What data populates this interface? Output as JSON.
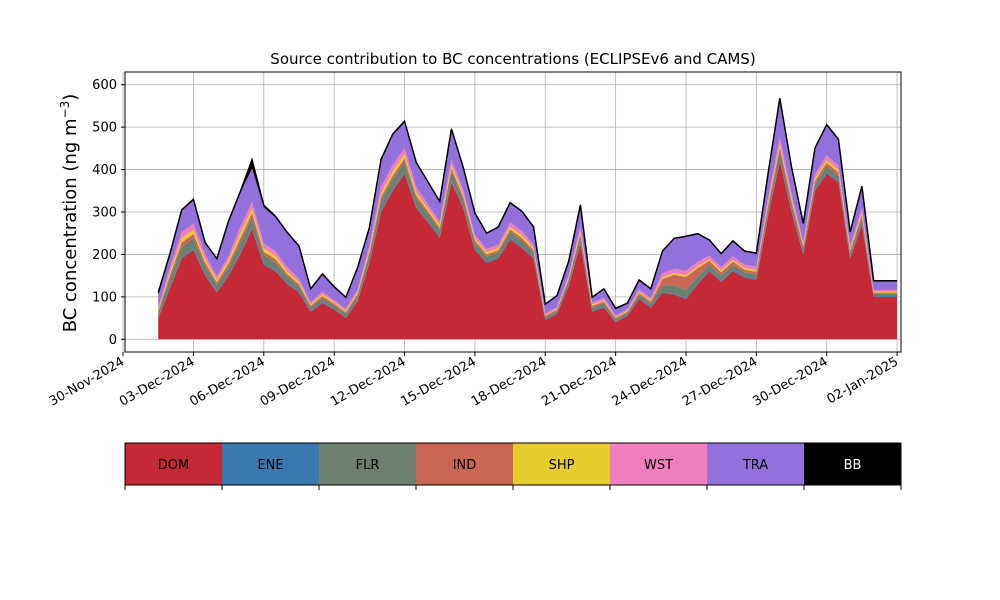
{
  "chart_data": {
    "type": "area",
    "title": "Source contribution to BC concentrations (ECLIPSEv6 and CAMS)",
    "ylabel": "BC concentration (ng m⁻³)",
    "ylabel_main": "BC concentration (ng m",
    "ylabel_exp": "−3",
    "ylabel_close": ")",
    "xlabel": "",
    "grid": true,
    "stacked": true,
    "ylim": [
      -30,
      630
    ],
    "xlim": [
      "2024-11-30T02:00",
      "2025-01-02T04:00"
    ],
    "yticks": [
      0,
      100,
      200,
      300,
      400,
      500,
      600
    ],
    "xticks": [
      "2024-11-30",
      "2024-12-03",
      "2024-12-06",
      "2024-12-09",
      "2024-12-12",
      "2024-12-15",
      "2024-12-18",
      "2024-12-21",
      "2024-12-24",
      "2024-12-27",
      "2024-12-30",
      "2025-01-02"
    ],
    "xtick_labels": [
      "30-Nov-2024",
      "03-Dec-2024",
      "06-Dec-2024",
      "09-Dec-2024",
      "12-Dec-2024",
      "15-Dec-2024",
      "18-Dec-2024",
      "21-Dec-2024",
      "24-Dec-2024",
      "27-Dec-2024",
      "30-Dec-2024",
      "02-Jan-2025"
    ],
    "x": [
      "2024-12-01T12:00",
      "2024-12-02T00:00",
      "2024-12-02T12:00",
      "2024-12-03T00:00",
      "2024-12-03T12:00",
      "2024-12-04T00:00",
      "2024-12-04T12:00",
      "2024-12-05T00:00",
      "2024-12-05T12:00",
      "2024-12-06T00:00",
      "2024-12-06T12:00",
      "2024-12-07T00:00",
      "2024-12-07T12:00",
      "2024-12-08T00:00",
      "2024-12-08T12:00",
      "2024-12-09T00:00",
      "2024-12-09T12:00",
      "2024-12-10T00:00",
      "2024-12-10T12:00",
      "2024-12-11T00:00",
      "2024-12-11T12:00",
      "2024-12-12T00:00",
      "2024-12-12T12:00",
      "2024-12-13T00:00",
      "2024-12-13T12:00",
      "2024-12-14T00:00",
      "2024-12-14T12:00",
      "2024-12-15T00:00",
      "2024-12-15T12:00",
      "2024-12-16T00:00",
      "2024-12-16T12:00",
      "2024-12-17T00:00",
      "2024-12-17T12:00",
      "2024-12-18T00:00",
      "2024-12-18T12:00",
      "2024-12-19T00:00",
      "2024-12-19T12:00",
      "2024-12-20T00:00",
      "2024-12-20T12:00",
      "2024-12-21T00:00",
      "2024-12-21T12:00",
      "2024-12-22T00:00",
      "2024-12-22T12:00",
      "2024-12-23T00:00",
      "2024-12-23T12:00",
      "2024-12-24T00:00",
      "2024-12-24T12:00",
      "2024-12-25T00:00",
      "2024-12-25T12:00",
      "2024-12-26T00:00",
      "2024-12-26T12:00",
      "2024-12-27T00:00",
      "2024-12-27T12:00",
      "2024-12-28T00:00",
      "2024-12-28T12:00",
      "2024-12-29T00:00",
      "2024-12-29T12:00",
      "2024-12-30T00:00",
      "2024-12-30T12:00",
      "2024-12-31T00:00",
      "2024-12-31T12:00",
      "2025-01-01T00:00",
      "2025-01-01T12:00",
      "2025-01-02T00:00"
    ],
    "series": [
      {
        "name": "DOM",
        "color": "#c42935",
        "values": [
          50,
          120,
          190,
          210,
          150,
          110,
          150,
          200,
          260,
          175,
          160,
          130,
          110,
          65,
          85,
          70,
          50,
          90,
          180,
          300,
          350,
          390,
          310,
          275,
          240,
          370,
          310,
          210,
          180,
          190,
          235,
          215,
          190,
          45,
          60,
          125,
          225,
          65,
          75,
          40,
          55,
          95,
          75,
          110,
          105,
          95,
          130,
          160,
          135,
          160,
          145,
          140,
          290,
          420,
          300,
          200,
          350,
          390,
          370,
          190,
          270,
          100,
          100,
          100
        ]
      },
      {
        "name": "ENE",
        "color": "#3a78b0",
        "values": [
          2,
          3,
          3,
          3,
          3,
          3,
          3,
          3,
          3,
          3,
          3,
          3,
          3,
          2,
          2,
          2,
          2,
          2,
          3,
          3,
          3,
          3,
          3,
          3,
          3,
          3,
          3,
          3,
          3,
          3,
          3,
          3,
          3,
          2,
          2,
          3,
          3,
          2,
          2,
          2,
          2,
          2,
          2,
          2,
          2,
          2,
          3,
          3,
          3,
          3,
          3,
          3,
          3,
          3,
          3,
          3,
          3,
          3,
          3,
          3,
          3,
          2,
          2,
          2
        ]
      },
      {
        "name": "FLR",
        "color": "#6d7f70",
        "values": [
          10,
          20,
          25,
          25,
          20,
          15,
          18,
          25,
          25,
          20,
          18,
          15,
          12,
          8,
          10,
          8,
          8,
          10,
          15,
          25,
          25,
          25,
          20,
          18,
          15,
          22,
          18,
          15,
          12,
          12,
          15,
          15,
          12,
          5,
          5,
          10,
          15,
          8,
          8,
          5,
          5,
          8,
          8,
          15,
          20,
          20,
          15,
          12,
          12,
          12,
          10,
          10,
          15,
          20,
          15,
          10,
          12,
          15,
          12,
          10,
          12,
          5,
          5,
          5
        ]
      },
      {
        "name": "IND",
        "color": "#c96655",
        "values": [
          5,
          8,
          10,
          10,
          8,
          6,
          8,
          10,
          10,
          8,
          8,
          6,
          5,
          4,
          5,
          4,
          4,
          5,
          6,
          8,
          8,
          8,
          6,
          6,
          5,
          8,
          6,
          5,
          5,
          5,
          6,
          6,
          5,
          3,
          3,
          4,
          6,
          4,
          4,
          3,
          3,
          4,
          4,
          15,
          25,
          30,
          20,
          10,
          8,
          8,
          6,
          6,
          8,
          10,
          8,
          6,
          8,
          8,
          8,
          6,
          8,
          3,
          3,
          3
        ]
      },
      {
        "name": "SHP",
        "color": "#e6cd2b",
        "values": [
          3,
          8,
          10,
          10,
          8,
          6,
          8,
          12,
          10,
          8,
          8,
          6,
          5,
          3,
          4,
          3,
          3,
          4,
          6,
          8,
          10,
          10,
          8,
          6,
          6,
          8,
          6,
          5,
          5,
          5,
          6,
          6,
          5,
          2,
          2,
          4,
          6,
          3,
          3,
          2,
          2,
          3,
          3,
          4,
          4,
          4,
          4,
          4,
          4,
          4,
          4,
          4,
          6,
          8,
          6,
          4,
          6,
          6,
          6,
          4,
          6,
          2,
          2,
          2
        ]
      },
      {
        "name": "WST",
        "color": "#f07ebc",
        "values": [
          5,
          10,
          15,
          15,
          12,
          8,
          10,
          15,
          15,
          12,
          10,
          10,
          8,
          5,
          6,
          5,
          5,
          6,
          10,
          15,
          15,
          15,
          12,
          10,
          8,
          12,
          10,
          8,
          8,
          8,
          10,
          10,
          8,
          4,
          4,
          6,
          10,
          5,
          5,
          4,
          4,
          6,
          5,
          10,
          10,
          10,
          10,
          8,
          8,
          8,
          8,
          8,
          12,
          15,
          12,
          8,
          10,
          12,
          10,
          8,
          10,
          4,
          4,
          4
        ]
      },
      {
        "name": "TRA",
        "color": "#9370db",
        "values": [
          30,
          30,
          50,
          55,
          25,
          40,
          80,
          80,
          80,
          85,
          80,
          80,
          75,
          30,
          40,
          30,
          25,
          50,
          40,
          60,
          70,
          60,
          55,
          50,
          45,
          70,
          50,
          50,
          35,
          40,
          45,
          45,
          40,
          20,
          25,
          30,
          50,
          10,
          20,
          15,
          12,
          20,
          20,
          50,
          70,
          80,
          65,
          35,
          30,
          35,
          30,
          30,
          55,
          90,
          60,
          40,
          60,
          70,
          60,
          30,
          50,
          20,
          20,
          20
        ]
      },
      {
        "name": "BB",
        "color": "#000000",
        "values": [
          5,
          3,
          2,
          2,
          2,
          2,
          2,
          3,
          20,
          5,
          3,
          2,
          2,
          2,
          2,
          2,
          2,
          2,
          3,
          5,
          3,
          3,
          3,
          3,
          3,
          3,
          3,
          2,
          2,
          2,
          2,
          2,
          2,
          2,
          2,
          2,
          2,
          2,
          2,
          2,
          2,
          2,
          2,
          2,
          2,
          2,
          2,
          2,
          2,
          2,
          2,
          2,
          2,
          2,
          2,
          2,
          2,
          2,
          2,
          2,
          2,
          2,
          2,
          2
        ]
      }
    ],
    "legend": {
      "placement": "below",
      "items": [
        "DOM",
        "ENE",
        "FLR",
        "IND",
        "SHP",
        "WST",
        "TRA",
        "BB"
      ]
    }
  }
}
